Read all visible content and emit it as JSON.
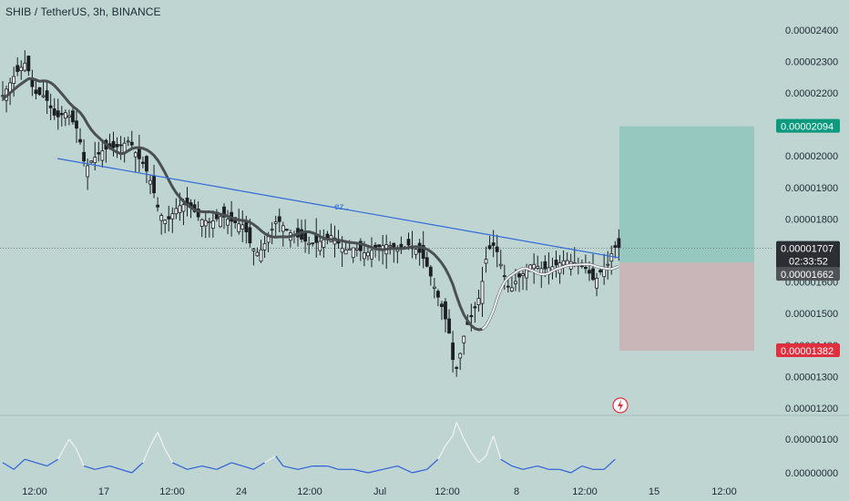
{
  "header": {
    "symbol_title": "SHIB / TetherUS, 3h, BINANCE"
  },
  "colors": {
    "background": "#bfd5d2",
    "candle": "#1c1f24",
    "moving_average": "#4a4f52",
    "trendline": "#2f6bd8",
    "profit_zone": "#8fc5bd",
    "stop_zone": "#c9b3b5",
    "target_badge": "#0b9a7e",
    "entry_badge": "#4f5356",
    "current_badge": "#2b2f33",
    "stop_badge": "#e0303f",
    "oscillator_high": "#f2f2f2",
    "oscillator_low": "#2f5fd8"
  },
  "chart_data": [
    {
      "type": "candlestick",
      "title": "SHIB / TetherUS, 3h, BINANCE",
      "xlabel": "",
      "ylabel": "",
      "ylim": [
        1.15e-05,
        2.45e-05
      ],
      "x_tick_labels": [
        "12:00",
        "17",
        "12:00",
        "24",
        "12:00",
        "Jul",
        "12:00",
        "8",
        "12:00",
        "15",
        "12:00"
      ],
      "y_tick_labels": [
        "0.00002400",
        "0.00002300",
        "0.00002200",
        "0.00002100",
        "0.00002000",
        "0.00001900",
        "0.00001800",
        "0.00001700",
        "0.00001600",
        "0.00001500",
        "0.00001400",
        "0.00001300",
        "0.00001200"
      ],
      "y_tick_values": [
        2.4e-05,
        2.3e-05,
        2.2e-05,
        2.1e-05,
        2e-05,
        1.9e-05,
        1.8e-05,
        1.7e-05,
        1.6e-05,
        1.5e-05,
        1.4e-05,
        1.3e-05,
        1.2e-05
      ],
      "price_path": [
        [
          0,
          2.18e-05
        ],
        [
          4,
          2.26e-05
        ],
        [
          7,
          2.3e-05
        ],
        [
          9,
          2.2e-05
        ],
        [
          12,
          2.19e-05
        ],
        [
          15,
          2.12e-05
        ],
        [
          18,
          2.14e-05
        ],
        [
          21,
          2.08e-05
        ],
        [
          23,
          1.96e-05
        ],
        [
          25,
          1.99e-05
        ],
        [
          28,
          2.02e-05
        ],
        [
          32,
          2.03e-05
        ],
        [
          35,
          2.05e-05
        ],
        [
          37,
          2e-05
        ],
        [
          39,
          1.97e-05
        ],
        [
          41,
          1.91e-05
        ],
        [
          43,
          1.82e-05
        ],
        [
          45,
          1.79e-05
        ],
        [
          48,
          1.84e-05
        ],
        [
          51,
          1.85e-05
        ],
        [
          54,
          1.8e-05
        ],
        [
          57,
          1.79e-05
        ],
        [
          60,
          1.81e-05
        ],
        [
          63,
          1.79e-05
        ],
        [
          66,
          1.78e-05
        ],
        [
          68,
          1.71e-05
        ],
        [
          70,
          1.69e-05
        ],
        [
          72,
          1.73e-05
        ],
        [
          75,
          1.8e-05
        ],
        [
          78,
          1.76e-05
        ],
        [
          81,
          1.74e-05
        ],
        [
          84,
          1.72e-05
        ],
        [
          87,
          1.73e-05
        ],
        [
          90,
          1.75e-05
        ],
        [
          93,
          1.7e-05
        ],
        [
          96,
          1.71e-05
        ],
        [
          99,
          1.69e-05
        ],
        [
          102,
          1.71e-05
        ],
        [
          105,
          1.72e-05
        ],
        [
          108,
          1.7e-05
        ],
        [
          111,
          1.72e-05
        ],
        [
          114,
          1.69e-05
        ],
        [
          116,
          1.64e-05
        ],
        [
          118,
          1.57e-05
        ],
        [
          120,
          1.51e-05
        ],
        [
          122,
          1.42e-05
        ],
        [
          123,
          1.31e-05
        ],
        [
          124,
          1.34e-05
        ],
        [
          126,
          1.45e-05
        ],
        [
          128,
          1.5e-05
        ],
        [
          130,
          1.56e-05
        ],
        [
          132,
          1.7e-05
        ],
        [
          134,
          1.72e-05
        ],
        [
          136,
          1.64e-05
        ],
        [
          138,
          1.57e-05
        ],
        [
          140,
          1.61e-05
        ],
        [
          142,
          1.63e-05
        ],
        [
          144,
          1.66e-05
        ],
        [
          147,
          1.64e-05
        ],
        [
          150,
          1.65e-05
        ],
        [
          153,
          1.67e-05
        ],
        [
          156,
          1.66e-05
        ],
        [
          159,
          1.64e-05
        ],
        [
          161,
          1.6e-05
        ],
        [
          163,
          1.64e-05
        ],
        [
          165,
          1.66e-05
        ],
        [
          166,
          1.71e-05
        ]
      ],
      "annotations": {
        "trendline_label": "ez..",
        "target_price": "0.00002094",
        "entry_price": "0.00001662",
        "current_price": "0.00001707",
        "bar_countdown": "02:33:52",
        "stop_price": "0.00001382"
      }
    },
    {
      "type": "line",
      "xlabel": "",
      "ylabel": "",
      "ylim": [
        -1e-07,
        1.5e-06
      ],
      "y_tick_labels": [
        "0.00000100",
        "0.00000000"
      ],
      "y_tick_values": [
        1e-06,
        0.0
      ],
      "series": [
        {
          "values": [
            [
              0,
              3e-07
            ],
            [
              3,
              1e-07
            ],
            [
              6,
              4e-07
            ],
            [
              9,
              3e-07
            ],
            [
              12,
              2e-07
            ],
            [
              15,
              4e-07
            ],
            [
              18,
              1e-06
            ],
            [
              20,
              7e-07
            ],
            [
              22,
              2e-07
            ],
            [
              25,
              1e-07
            ],
            [
              29,
              2e-07
            ],
            [
              32,
              1e-07
            ],
            [
              35,
              0.0
            ],
            [
              38,
              3e-07
            ],
            [
              40,
              8e-07
            ],
            [
              42,
              1.2e-06
            ],
            [
              44,
              7e-07
            ],
            [
              46,
              3e-07
            ],
            [
              50,
              1e-07
            ],
            [
              54,
              2e-07
            ],
            [
              58,
              1e-07
            ],
            [
              62,
              3e-07
            ],
            [
              65,
              2e-07
            ],
            [
              68,
              1e-07
            ],
            [
              71,
              3e-07
            ],
            [
              74,
              5e-07
            ],
            [
              76,
              2e-07
            ],
            [
              80,
              1e-07
            ],
            [
              84,
              2e-07
            ],
            [
              88,
              2e-07
            ],
            [
              91,
              1e-07
            ],
            [
              95,
              1e-07
            ],
            [
              99,
              0.0
            ],
            [
              103,
              1e-07
            ],
            [
              107,
              2e-07
            ],
            [
              111,
              0.0
            ],
            [
              115,
              1e-07
            ],
            [
              118,
              4e-07
            ],
            [
              120,
              8e-07
            ],
            [
              122,
              1.1e-06
            ],
            [
              123,
              1.5e-06
            ],
            [
              125,
              1e-06
            ],
            [
              127,
              6e-07
            ],
            [
              129,
              3e-07
            ],
            [
              131,
              5e-07
            ],
            [
              133,
              1.1e-06
            ],
            [
              135,
              4e-07
            ],
            [
              138,
              2e-07
            ],
            [
              141,
              1e-07
            ],
            [
              145,
              2e-07
            ],
            [
              148,
              1e-07
            ],
            [
              151,
              1e-07
            ],
            [
              154,
              0.0
            ],
            [
              157,
              2e-07
            ],
            [
              160,
              1e-07
            ],
            [
              163,
              1e-07
            ],
            [
              166,
              4e-07
            ]
          ]
        }
      ]
    }
  ]
}
